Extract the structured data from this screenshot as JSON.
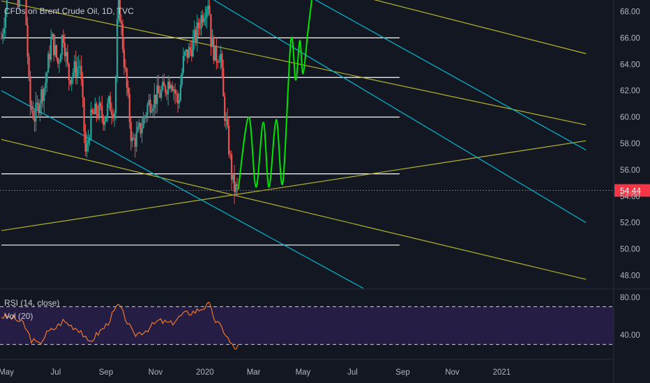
{
  "header": {
    "symbol_title": "CFDs on Brent Crude Oil, 1D, TVC"
  },
  "last_price": {
    "label": "54.44",
    "value": 54.44,
    "color": "#f23645"
  },
  "rsi_panel": {
    "legend": [
      "RSI (14, close)",
      "Vol (20)"
    ]
  },
  "colors": {
    "background": "#131722",
    "up": "#26a69a",
    "down": "#ef5350",
    "fib_line": "#ffffff",
    "trend_yellow": "#b5b528",
    "trend_cyan": "#00bcd4",
    "projection": "#00e600",
    "rsi_line": "#ff7f27",
    "rsi_band": "#2a1f4a"
  },
  "chart_data": [
    {
      "type": "candlestick",
      "title": "CFDs on Brent Crude Oil, 1D, TVC",
      "x_axis": {
        "tick_labels": [
          "May",
          "Jul",
          "Sep",
          "Nov",
          "2020",
          "Mar",
          "May",
          "Jul",
          "Sep",
          "Nov",
          "2021"
        ]
      },
      "y_axis": {
        "side": "right",
        "range": [
          47,
          69
        ],
        "tick_labels": [
          "48.00",
          "50.00",
          "52.00",
          "54.00",
          "56.00",
          "58.00",
          "60.00",
          "62.00",
          "64.00",
          "66.00",
          "68.00"
        ]
      },
      "price_path": [
        {
          "date": "2019-04-25",
          "close": 66.0
        },
        {
          "date": "2019-05-08",
          "close": 71.5
        },
        {
          "date": "2019-05-16",
          "close": 68.0
        },
        {
          "date": "2019-05-22",
          "close": 72.0
        },
        {
          "date": "2019-05-30",
          "close": 61.0
        },
        {
          "date": "2019-06-05",
          "close": 60.0
        },
        {
          "date": "2019-06-12",
          "close": 61.5
        },
        {
          "date": "2019-06-18",
          "close": 62.5
        },
        {
          "date": "2019-06-26",
          "close": 66.0
        },
        {
          "date": "2019-07-04",
          "close": 64.0
        },
        {
          "date": "2019-07-10",
          "close": 66.5
        },
        {
          "date": "2019-07-17",
          "close": 63.0
        },
        {
          "date": "2019-07-23",
          "close": 63.5
        },
        {
          "date": "2019-07-31",
          "close": 64.0
        },
        {
          "date": "2019-08-07",
          "close": 57.0
        },
        {
          "date": "2019-08-14",
          "close": 60.0
        },
        {
          "date": "2019-08-22",
          "close": 60.5
        },
        {
          "date": "2019-08-30",
          "close": 60.0
        },
        {
          "date": "2019-09-05",
          "close": 61.0
        },
        {
          "date": "2019-09-12",
          "close": 60.5
        },
        {
          "date": "2019-09-16",
          "close": 69.5
        },
        {
          "date": "2019-09-23",
          "close": 64.5
        },
        {
          "date": "2019-10-03",
          "close": 58.0
        },
        {
          "date": "2019-10-09",
          "close": 58.5
        },
        {
          "date": "2019-10-16",
          "close": 59.5
        },
        {
          "date": "2019-10-23",
          "close": 61.0
        },
        {
          "date": "2019-11-01",
          "close": 61.5
        },
        {
          "date": "2019-11-11",
          "close": 62.0
        },
        {
          "date": "2019-11-20",
          "close": 63.0
        },
        {
          "date": "2019-11-29",
          "close": 61.0
        },
        {
          "date": "2019-12-06",
          "close": 64.5
        },
        {
          "date": "2019-12-13",
          "close": 65.0
        },
        {
          "date": "2019-12-20",
          "close": 66.0
        },
        {
          "date": "2019-12-27",
          "close": 67.5
        },
        {
          "date": "2020-01-06",
          "close": 69.0
        },
        {
          "date": "2020-01-08",
          "close": 66.0
        },
        {
          "date": "2020-01-14",
          "close": 64.5
        },
        {
          "date": "2020-01-20",
          "close": 65.0
        },
        {
          "date": "2020-01-24",
          "close": 61.0
        },
        {
          "date": "2020-01-30",
          "close": 58.0
        },
        {
          "date": "2020-02-04",
          "close": 55.0
        },
        {
          "date": "2020-02-07",
          "close": 54.5
        },
        {
          "date": "2020-02-11",
          "close": 54.44
        }
      ],
      "projection": [
        {
          "date": "2020-02-11",
          "price": 54.5
        },
        {
          "date": "2020-02-24",
          "price": 60.0
        },
        {
          "date": "2020-03-04",
          "price": 54.7
        },
        {
          "date": "2020-03-13",
          "price": 59.6
        },
        {
          "date": "2020-03-20",
          "price": 54.7
        },
        {
          "date": "2020-03-29",
          "price": 59.8
        },
        {
          "date": "2020-04-06",
          "price": 55.0
        },
        {
          "date": "2020-04-16",
          "price": 65.8
        },
        {
          "date": "2020-04-22",
          "price": 62.8
        },
        {
          "date": "2020-04-27",
          "price": 65.8
        },
        {
          "date": "2020-05-01",
          "price": 63.3
        },
        {
          "date": "2020-05-07",
          "price": 66.5
        },
        {
          "date": "2020-05-13",
          "price": 69.5
        }
      ],
      "horizontal_levels": [
        {
          "price": 66.0,
          "from": "2019-04-25",
          "to": "2020-08-28"
        },
        {
          "price": 63.0,
          "from": "2019-04-25",
          "to": "2020-08-28"
        },
        {
          "price": 60.0,
          "from": "2019-04-25",
          "to": "2020-08-28"
        },
        {
          "price": 55.7,
          "from": "2019-04-25",
          "to": "2020-08-28"
        },
        {
          "price": 50.3,
          "from": "2019-04-25",
          "to": "2020-08-28"
        }
      ],
      "trend_lines": [
        {
          "color": "yellow",
          "p1": {
            "date": "2019-04-25",
            "price": 68.8
          },
          "p2": {
            "date": "2021-04-15",
            "price": 59.4
          }
        },
        {
          "color": "yellow",
          "p1": {
            "date": "2019-04-25",
            "price": 58.3
          },
          "p2": {
            "date": "2021-04-15",
            "price": 47.7
          }
        },
        {
          "color": "yellow",
          "p1": {
            "date": "2019-04-25",
            "price": 51.4
          },
          "p2": {
            "date": "2021-04-15",
            "price": 58.2
          }
        },
        {
          "color": "yellow",
          "p1": {
            "date": "2020-03-15",
            "price": 71.0
          },
          "p2": {
            "date": "2021-04-15",
            "price": 64.8
          }
        },
        {
          "color": "cyan",
          "p1": {
            "date": "2019-04-25",
            "price": 62.0
          },
          "p2": {
            "date": "2020-07-15",
            "price": 47.0
          }
        },
        {
          "color": "cyan",
          "p1": {
            "date": "2019-11-15",
            "price": 71.0
          },
          "p2": {
            "date": "2021-04-15",
            "price": 52.0
          }
        },
        {
          "color": "cyan",
          "p1": {
            "date": "2020-03-15",
            "price": 71.0
          },
          "p2": {
            "date": "2021-04-15",
            "price": 57.5
          }
        }
      ]
    },
    {
      "type": "line",
      "title": "RSI (14, close)",
      "y_axis": {
        "side": "right",
        "range": [
          15,
          88
        ],
        "tick_labels": [
          "40.00",
          "80.00"
        ]
      },
      "bands": [
        70,
        30
      ],
      "series": [
        {
          "name": "RSI (14, close)",
          "points": [
            {
              "date": "2019-04-25",
              "value": 60
            },
            {
              "date": "2019-05-10",
              "value": 58
            },
            {
              "date": "2019-05-22",
              "value": 52
            },
            {
              "date": "2019-06-01",
              "value": 35
            },
            {
              "date": "2019-06-10",
              "value": 30
            },
            {
              "date": "2019-06-20",
              "value": 42
            },
            {
              "date": "2019-07-01",
              "value": 48
            },
            {
              "date": "2019-07-10",
              "value": 55
            },
            {
              "date": "2019-07-20",
              "value": 50
            },
            {
              "date": "2019-08-01",
              "value": 45
            },
            {
              "date": "2019-08-10",
              "value": 31
            },
            {
              "date": "2019-08-20",
              "value": 40
            },
            {
              "date": "2019-09-01",
              "value": 50
            },
            {
              "date": "2019-09-16",
              "value": 72
            },
            {
              "date": "2019-09-25",
              "value": 58
            },
            {
              "date": "2019-10-05",
              "value": 40
            },
            {
              "date": "2019-10-20",
              "value": 45
            },
            {
              "date": "2019-11-05",
              "value": 55
            },
            {
              "date": "2019-11-20",
              "value": 52
            },
            {
              "date": "2019-12-05",
              "value": 62
            },
            {
              "date": "2019-12-20",
              "value": 65
            },
            {
              "date": "2020-01-06",
              "value": 72
            },
            {
              "date": "2020-01-14",
              "value": 55
            },
            {
              "date": "2020-01-24",
              "value": 45
            },
            {
              "date": "2020-02-01",
              "value": 32
            },
            {
              "date": "2020-02-07",
              "value": 25
            },
            {
              "date": "2020-02-11",
              "value": 30
            }
          ]
        }
      ]
    }
  ]
}
